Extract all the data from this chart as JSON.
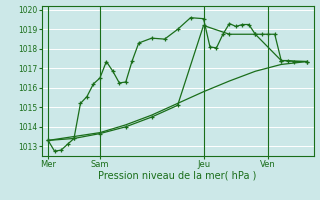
{
  "background_color": "#cce8e8",
  "grid_color": "#ffffff",
  "line_color": "#1a6e1a",
  "xlabel": "Pression niveau de la mer( hPa )",
  "ylim": [
    1012.5,
    1020.2
  ],
  "yticks": [
    1013,
    1014,
    1015,
    1016,
    1017,
    1018,
    1019,
    1020
  ],
  "day_labels": [
    "Mer",
    "Sam",
    "Jeu",
    "Ven"
  ],
  "day_positions": [
    0,
    4,
    12,
    17
  ],
  "xlim": [
    -0.5,
    20.5
  ],
  "series1_x": [
    0,
    0.5,
    1,
    1.5,
    2,
    2.5,
    3,
    3.5,
    4,
    4.5,
    5,
    5.5,
    6,
    6.5,
    7,
    8,
    9,
    10,
    11,
    12,
    12.5,
    13,
    13.5,
    14,
    14.5,
    15,
    15.5,
    16,
    16.5,
    17,
    17.5,
    18,
    18.5,
    19,
    20
  ],
  "series1_y": [
    1013.3,
    1012.75,
    1012.8,
    1013.1,
    1013.4,
    1015.2,
    1015.55,
    1016.2,
    1016.5,
    1017.35,
    1016.85,
    1016.25,
    1016.3,
    1017.4,
    1018.3,
    1018.55,
    1018.5,
    1019.0,
    1019.6,
    1019.55,
    1018.1,
    1018.05,
    1018.75,
    1019.3,
    1019.15,
    1019.25,
    1019.25,
    1018.75,
    1018.75,
    1018.75,
    1018.75,
    1017.4,
    1017.4,
    1017.35,
    1017.35
  ],
  "series2_x": [
    0,
    2,
    4,
    6,
    8,
    10,
    12,
    14,
    16,
    18,
    20
  ],
  "series2_y": [
    1013.3,
    1013.5,
    1013.7,
    1014.1,
    1014.6,
    1015.2,
    1015.8,
    1016.35,
    1016.85,
    1017.2,
    1017.35
  ],
  "series3_x": [
    0,
    2,
    4,
    6,
    8,
    10,
    12,
    14,
    16,
    18,
    20
  ],
  "series3_y": [
    1013.3,
    1013.4,
    1013.65,
    1014.0,
    1014.5,
    1015.1,
    1019.2,
    1018.75,
    1018.75,
    1017.4,
    1017.35
  ]
}
